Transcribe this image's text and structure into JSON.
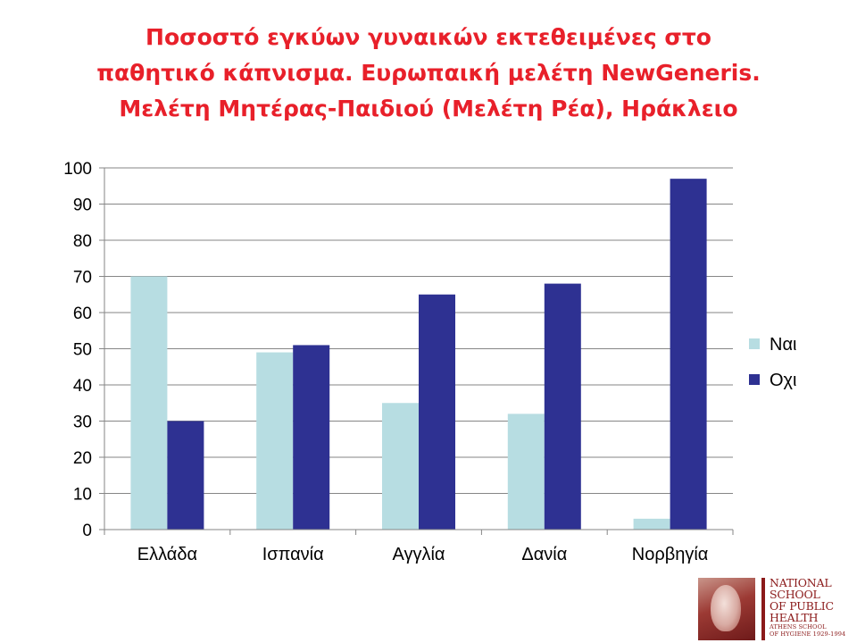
{
  "title_lines": [
    "Ποσοστό εγκύων γυναικών εκτεθειμένες στο",
    "παθητικό κάπνισμα. Ευρωπαική μελέτη NewGeneris.",
    "Μελέτη Μητέρας-Παιδιού (Μελέτη Ρέα), Ηράκλειο"
  ],
  "logo": {
    "lines": [
      "NATIONAL",
      "SCHOOL",
      "OF PUBLIC",
      "HEALTH"
    ],
    "sub_lines": [
      "ATHENS SCHOOL",
      "OF HYGIENE 1929-1994"
    ]
  },
  "colors": {
    "title": "#e8202a",
    "series_nai": "#b7dde2",
    "series_ochi": "#2e3192",
    "grid": "#868686",
    "logo": "#8b1a1a"
  },
  "chart_data": {
    "type": "bar",
    "categories": [
      "Ελλάδα",
      "Ισπανία",
      "Αγγλία",
      "Δανία",
      "Νορβηγία"
    ],
    "series": [
      {
        "name": "Ναι",
        "values": [
          70,
          49,
          35,
          32,
          3
        ]
      },
      {
        "name": "Οχι",
        "values": [
          30,
          51,
          65,
          68,
          97
        ]
      }
    ],
    "ylim": [
      0,
      100
    ],
    "yticks": [
      0,
      10,
      20,
      30,
      40,
      50,
      60,
      70,
      80,
      90,
      100
    ],
    "grid": true,
    "legend": "right"
  }
}
